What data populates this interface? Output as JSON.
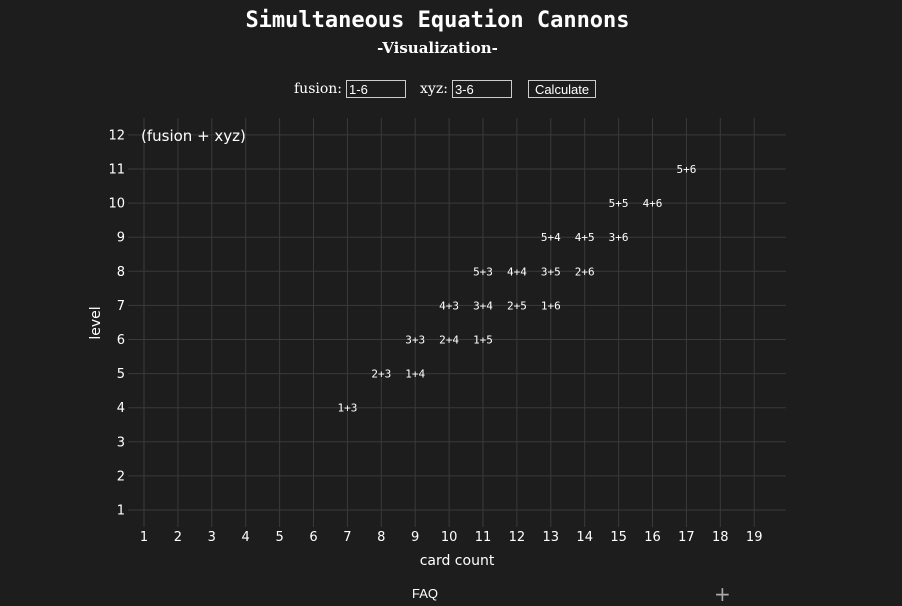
{
  "page": {
    "title": "Simultaneous Equation Cannons",
    "subtitle": "-Visualization-"
  },
  "controls": {
    "fusion_label": "fusion:",
    "fusion_value": "1-6",
    "xyz_label": "xyz:",
    "xyz_value": "3-6",
    "calculate_label": "Calculate"
  },
  "footer": {
    "faq_label": "FAQ",
    "expand_symbol": "+"
  },
  "chart_data": {
    "type": "scatter",
    "title": "",
    "annotation": "(fusion + xyz)",
    "xlabel": "card count",
    "ylabel": "level",
    "xlim": [
      1,
      19
    ],
    "ylim": [
      1,
      12
    ],
    "xticks": [
      1,
      2,
      3,
      4,
      5,
      6,
      7,
      8,
      9,
      10,
      11,
      12,
      13,
      14,
      15,
      16,
      17,
      18,
      19
    ],
    "yticks": [
      1,
      2,
      3,
      4,
      5,
      6,
      7,
      8,
      9,
      10,
      11,
      12
    ],
    "grid": true,
    "marker": "text",
    "points": [
      {
        "x": 7,
        "y": 4,
        "label": "1+3"
      },
      {
        "x": 8,
        "y": 5,
        "label": "2+3"
      },
      {
        "x": 9,
        "y": 5,
        "label": "1+4"
      },
      {
        "x": 9,
        "y": 6,
        "label": "3+3"
      },
      {
        "x": 10,
        "y": 6,
        "label": "2+4"
      },
      {
        "x": 11,
        "y": 6,
        "label": "1+5"
      },
      {
        "x": 10,
        "y": 7,
        "label": "4+3"
      },
      {
        "x": 11,
        "y": 7,
        "label": "3+4"
      },
      {
        "x": 12,
        "y": 7,
        "label": "2+5"
      },
      {
        "x": 13,
        "y": 7,
        "label": "1+6"
      },
      {
        "x": 11,
        "y": 8,
        "label": "5+3"
      },
      {
        "x": 12,
        "y": 8,
        "label": "4+4"
      },
      {
        "x": 13,
        "y": 8,
        "label": "3+5"
      },
      {
        "x": 14,
        "y": 8,
        "label": "2+6"
      },
      {
        "x": 13,
        "y": 9,
        "label": "5+4"
      },
      {
        "x": 14,
        "y": 9,
        "label": "4+5"
      },
      {
        "x": 15,
        "y": 9,
        "label": "3+6"
      },
      {
        "x": 15,
        "y": 10,
        "label": "5+5"
      },
      {
        "x": 16,
        "y": 10,
        "label": "4+6"
      },
      {
        "x": 17,
        "y": 11,
        "label": "5+6"
      }
    ],
    "colors": {
      "background": "#1d1d1d",
      "grid": "#3a3a3a",
      "text": "#ffffff"
    }
  }
}
